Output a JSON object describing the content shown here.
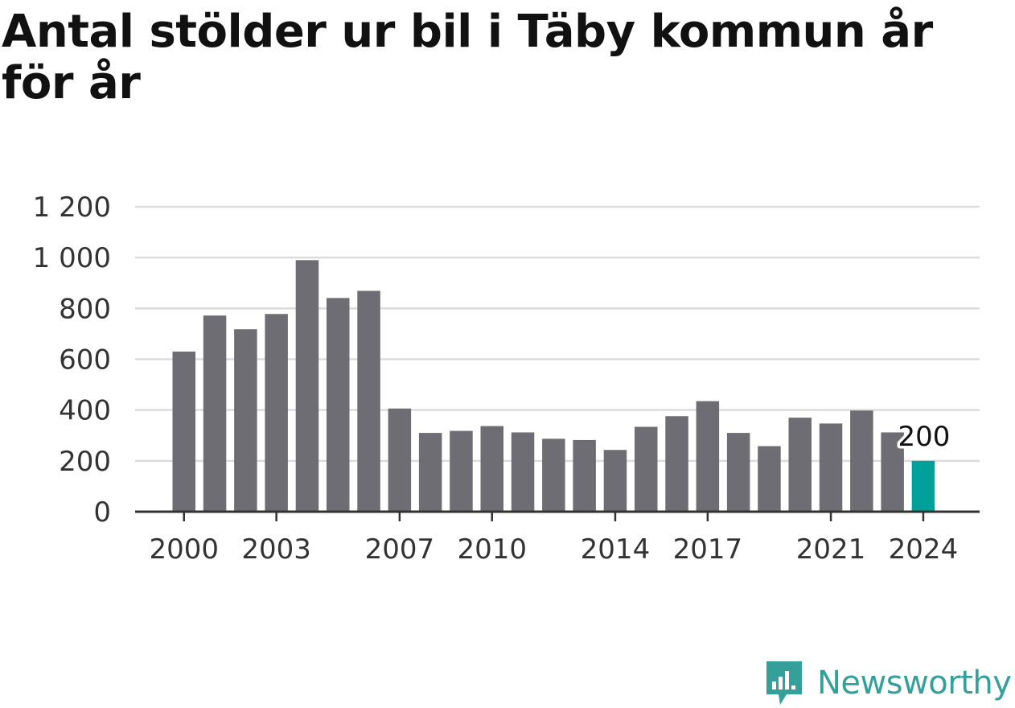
{
  "chart_data": {
    "type": "bar",
    "title": "Antal stölder ur bil i Täby kommun år för år",
    "xlabel": "",
    "ylabel": "",
    "categories": [
      "2000",
      "2001",
      "2002",
      "2003",
      "2004",
      "2005",
      "2006",
      "2007",
      "2008",
      "2009",
      "2010",
      "2011",
      "2012",
      "2013",
      "2014",
      "2015",
      "2016",
      "2017",
      "2018",
      "2019",
      "2020",
      "2021",
      "2022",
      "2023",
      "2024"
    ],
    "values": [
      630,
      772,
      718,
      778,
      990,
      841,
      869,
      406,
      310,
      318,
      337,
      312,
      287,
      282,
      243,
      334,
      376,
      435,
      310,
      258,
      370,
      347,
      398,
      312,
      200
    ],
    "x_tick_labels": [
      "2000",
      "2003",
      "2007",
      "2010",
      "2014",
      "2017",
      "2021",
      "2024"
    ],
    "y_ticks": [
      0,
      200,
      400,
      600,
      800,
      1000,
      1200
    ],
    "y_tick_labels": [
      "0",
      "200",
      "400",
      "600",
      "800",
      "1 000",
      "1 200"
    ],
    "ylim": [
      0,
      1200
    ],
    "grid": true,
    "highlight": {
      "category": "2024",
      "label": "200"
    },
    "colors": {
      "bar": "#6e6d73",
      "highlight": "#00a19b",
      "grid": "#dcdcdc",
      "axis": "#333333"
    }
  },
  "brand": {
    "name": "Newsworthy",
    "icon": "bar-chart-speech-bubble-icon",
    "color": "#35a09a"
  }
}
